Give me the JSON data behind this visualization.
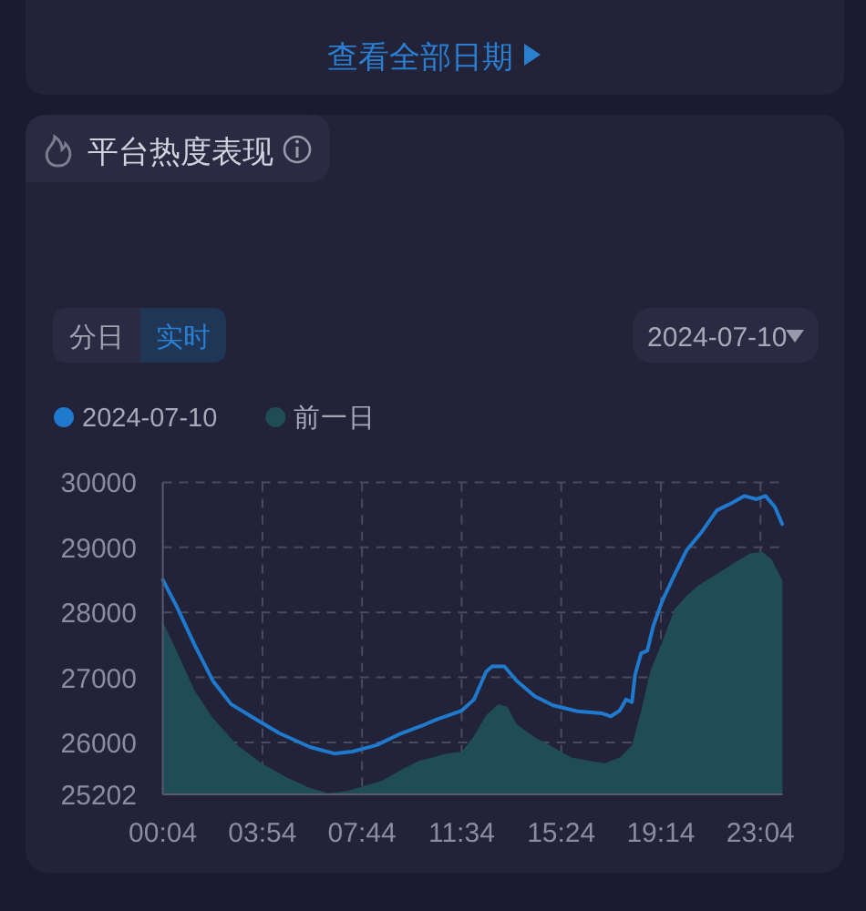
{
  "chart_data": {
    "type": "line",
    "title": "平台热度表现",
    "annotations": [
      "查看全部日期",
      "分日",
      "实时",
      "2024-07-10"
    ],
    "series": [
      {
        "name": "2024-07-10",
        "type": "line",
        "color": "#1f79cc",
        "x": [
          0.0667,
          0.59,
          1.29,
          1.99,
          2.69,
          3.63,
          4.56,
          5.73,
          6.66,
          7.36,
          8.3,
          9.24,
          10.17,
          10.64,
          11.57,
          12.04,
          12.51,
          12.74,
          13.21,
          13.68,
          14.38,
          15.08,
          16.02,
          16.95,
          17.3,
          17.65,
          17.89,
          18.12,
          18.24,
          18.47,
          18.71,
          18.94,
          19.29,
          19.76,
          20.23,
          20.81,
          21.39,
          21.86,
          22.44,
          22.91,
          23.26,
          23.62,
          23.9
        ],
        "values": [
          28500,
          28100,
          27500,
          26950,
          26590,
          26360,
          26140,
          25930,
          25830,
          25860,
          25960,
          26140,
          26280,
          26360,
          26490,
          26660,
          27090,
          27170,
          27170,
          26950,
          26710,
          26570,
          26480,
          26450,
          26400,
          26490,
          26660,
          26620,
          27040,
          27370,
          27410,
          27790,
          28180,
          28580,
          28960,
          29240,
          29570,
          29660,
          29790,
          29740,
          29790,
          29620,
          29360
        ]
      },
      {
        "name": "前一日",
        "type": "area",
        "color": "#1f4c56",
        "x": [
          0.0667,
          0.59,
          1.29,
          1.99,
          2.93,
          3.86,
          4.8,
          5.73,
          6.43,
          7.13,
          7.83,
          8.53,
          9.24,
          9.94,
          10.64,
          10.87,
          11.57,
          12.04,
          12.51,
          12.98,
          13.33,
          13.68,
          14.38,
          15.08,
          15.78,
          16.48,
          17.07,
          17.65,
          18.12,
          18.47,
          18.82,
          19.29,
          19.76,
          20.23,
          20.69,
          21.39,
          22.09,
          22.68,
          23.14,
          23.49,
          23.91
        ],
        "values": [
          27860,
          27410,
          26800,
          26380,
          25960,
          25680,
          25470,
          25300,
          25220,
          25250,
          25330,
          25420,
          25580,
          25720,
          25790,
          25820,
          25860,
          26100,
          26420,
          26590,
          26550,
          26280,
          26080,
          25930,
          25770,
          25720,
          25680,
          25770,
          25960,
          26480,
          27090,
          27550,
          28050,
          28260,
          28420,
          28590,
          28770,
          28910,
          28930,
          28820,
          28490
        ]
      }
    ],
    "xlim": [
      0.0667,
      23.92
    ],
    "xticks": [
      {
        "value": 0.0667,
        "label": "00:04"
      },
      {
        "value": 3.9,
        "label": "03:54"
      },
      {
        "value": 7.7333,
        "label": "07:44"
      },
      {
        "value": 11.5667,
        "label": "11:34"
      },
      {
        "value": 15.4,
        "label": "15:24"
      },
      {
        "value": 19.2333,
        "label": "19:14"
      },
      {
        "value": 23.0667,
        "label": "23:04"
      }
    ],
    "ylim": [
      25202,
      30000
    ],
    "yticks": [
      25202,
      26000,
      27000,
      28000,
      29000,
      30000
    ],
    "grid": true,
    "legend": "top left"
  }
}
